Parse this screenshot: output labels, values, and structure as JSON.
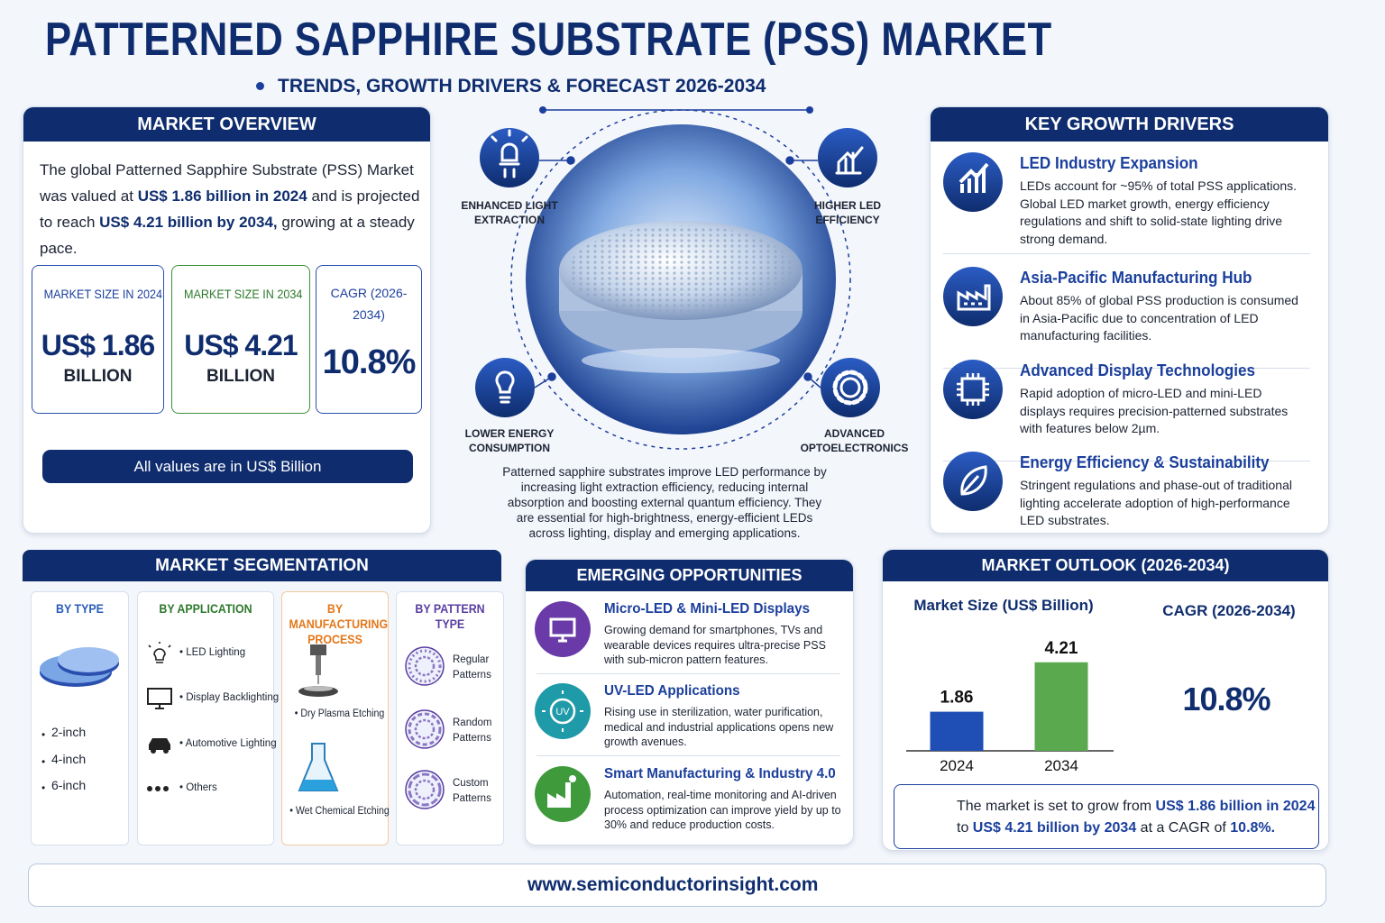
{
  "header": {
    "title": "PATTERNED SAPPHIRE SUBSTRATE (PSS) MARKET",
    "subtitle": "TRENDS, GROWTH DRIVERS & FORECAST 2026-2034"
  },
  "overview": {
    "heading": "MARKET OVERVIEW",
    "text": [
      "The global Patterned Sapphire Substrate (PSS) Market was valued at ",
      "US$ 1.86 billion in 2024",
      " and is projected to reach ",
      "US$ 4.21 billion by 2034,",
      " growing at a steady pace."
    ],
    "cards": [
      {
        "label": "MARKET SIZE IN 2024",
        "value": "US$ 1.86",
        "unit": "BILLION"
      },
      {
        "label": "MARKET SIZE IN 2034",
        "value": "US$ 4.21",
        "unit": "BILLION"
      },
      {
        "label": "CAGR (2026-2034)",
        "value": "10.8%"
      }
    ],
    "note": "All values are in US$ Billion"
  },
  "center": {
    "features": [
      "ENHANCED LIGHT EXTRACTION",
      "HIGHER LED EFFICIENCY",
      "LOWER ENERGY CONSUMPTION",
      "ADVANCED OPTOELECTRONICS"
    ],
    "description": "Patterned sapphire substrates improve LED performance by increasing light extraction efficiency, reducing internal absorption and boosting external quantum efficiency. They are essential for high-brightness, energy-efficient LEDs across lighting, display and emerging applications."
  },
  "drivers": {
    "heading": "KEY GROWTH DRIVERS",
    "items": [
      {
        "title": "LED Industry Expansion",
        "text": "LEDs account for ~95% of total PSS applications. Global LED market growth, energy efficiency regulations and shift to solid-state lighting drive strong demand."
      },
      {
        "title": "Asia-Pacific Manufacturing Hub",
        "text": "About 85% of global PSS production is consumed in Asia-Pacific due to concentration of LED manufacturing facilities."
      },
      {
        "title": "Advanced Display Technologies",
        "text": "Rapid adoption of micro-LED and mini-LED displays requires precision-patterned substrates with features below 2µm."
      },
      {
        "title": "Energy Efficiency & Sustainability",
        "text": "Stringent regulations and phase-out of traditional lighting accelerate adoption of high-performance LED substrates."
      }
    ]
  },
  "segmentation": {
    "heading": "MARKET SEGMENTATION",
    "columns": [
      {
        "title": "BY TYPE",
        "items": [
          "2-inch",
          "4-inch",
          "6-inch"
        ]
      },
      {
        "title": "BY APPLICATION",
        "items": [
          "LED Lighting",
          "Display Backlighting",
          "Automotive Lighting",
          "Others"
        ]
      },
      {
        "title": "BY MANUFACTURING PROCESS",
        "items": [
          "Dry Plasma Etching",
          "Wet Chemical Etching"
        ]
      },
      {
        "title": "BY PATTERN TYPE",
        "items": [
          "Regular Patterns",
          "Random Patterns",
          "Custom Patterns"
        ]
      }
    ]
  },
  "opportunities": {
    "heading": "EMERGING OPPORTUNITIES",
    "items": [
      {
        "title": "Micro-LED & Mini-LED Displays",
        "text": "Growing demand for smartphones, TVs and wearable devices requires ultra-precise PSS with sub-micron pattern features."
      },
      {
        "title": "UV-LED Applications",
        "text": "Rising use in sterilization, water purification, medical and industrial applications opens new growth avenues."
      },
      {
        "title": "Smart Manufacturing & Industry 4.0",
        "text": "Automation, real-time monitoring and AI-driven process optimization can improve yield by up to 30% and reduce production costs."
      }
    ]
  },
  "outlook": {
    "heading": "MARKET OUTLOOK (2026-2034)",
    "cagr_title": "CAGR (2026-2034)",
    "cagr": "10.8%",
    "summary": [
      "The market is set to grow from ",
      "US$ 1.86 billion in 2024",
      " to ",
      "US$ 4.21 billion by 2034",
      " at a CAGR of ",
      "10.8%."
    ]
  },
  "chart_data": {
    "type": "bar",
    "title": "Market Size (US$ Billion)",
    "categories": [
      "2024",
      "2034"
    ],
    "values": [
      1.86,
      4.21
    ],
    "colors": [
      "#1f4fb5",
      "#5aa94f"
    ],
    "ylim": [
      0,
      4.5
    ]
  },
  "footer": {
    "url": "www.semiconductorinsight.com"
  }
}
